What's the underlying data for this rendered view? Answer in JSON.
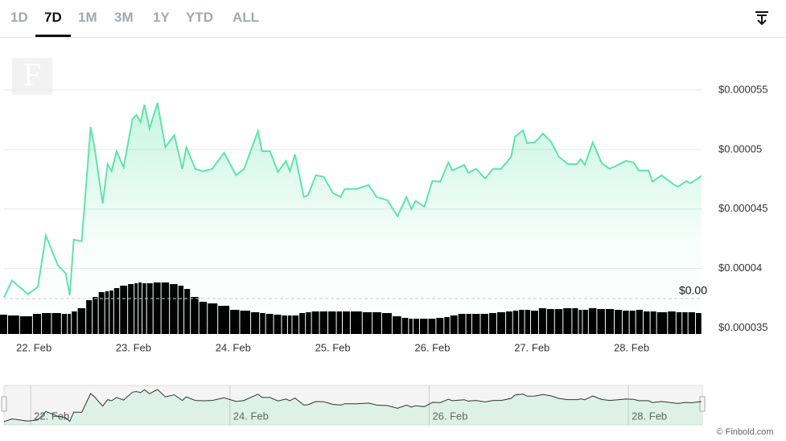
{
  "tabs": [
    "1D",
    "7D",
    "1M",
    "3M",
    "1Y",
    "YTD",
    "ALL"
  ],
  "active_tab": 1,
  "logo": "F",
  "credit": "© Finbold.com",
  "chart_data": {
    "type": "line",
    "x": [
      21.7,
      21.78,
      21.94,
      22.04,
      22.12,
      22.24,
      22.32,
      22.36,
      22.4,
      22.48,
      22.57,
      22.61,
      22.69,
      22.74,
      22.78,
      22.83,
      22.9,
      22.99,
      23.03,
      23.07,
      23.11,
      23.16,
      23.24,
      23.32,
      23.41,
      23.49,
      23.53,
      23.62,
      23.7,
      23.79,
      23.91,
      24.03,
      24.11,
      24.25,
      24.29,
      24.37,
      24.45,
      24.53,
      24.57,
      24.62,
      24.71,
      24.75,
      24.83,
      24.91,
      25.0,
      25.08,
      25.12,
      25.24,
      25.36,
      25.44,
      25.55,
      25.65,
      25.74,
      25.79,
      25.83,
      25.92,
      26.0,
      26.08,
      26.16,
      26.2,
      26.32,
      26.36,
      26.44,
      26.53,
      26.61,
      26.69,
      26.79,
      26.83,
      26.91,
      26.95,
      27.03,
      27.11,
      27.19,
      27.27,
      27.36,
      27.45,
      27.49,
      27.53,
      27.61,
      27.7,
      27.78,
      27.88,
      27.94,
      28.02,
      28.07,
      28.17,
      28.21,
      28.3,
      28.43,
      28.47,
      28.55,
      28.59,
      28.7
    ],
    "series": [
      {
        "color": "#5fe3ad",
        "values": [
          3.757e-05,
          3.899e-05,
          3.784e-05,
          3.845e-05,
          4.277e-05,
          4.027e-05,
          3.959e-05,
          3.777e-05,
          4.243e-05,
          4.23e-05,
          5.189e-05,
          5.007e-05,
          4.547e-05,
          4.878e-05,
          4.818e-05,
          4.986e-05,
          4.851e-05,
          5.257e-05,
          5.291e-05,
          5.23e-05,
          5.378e-05,
          5.176e-05,
          5.392e-05,
          5.02e-05,
          5.122e-05,
          4.838e-05,
          5.02e-05,
          4.838e-05,
          4.818e-05,
          4.838e-05,
          4.973e-05,
          4.784e-05,
          4.838e-05,
          5.155e-05,
          4.986e-05,
          4.986e-05,
          4.811e-05,
          4.905e-05,
          4.818e-05,
          4.959e-05,
          4.601e-05,
          4.615e-05,
          4.784e-05,
          4.77e-05,
          4.635e-05,
          4.601e-05,
          4.669e-05,
          4.669e-05,
          4.703e-05,
          4.601e-05,
          4.574e-05,
          4.439e-05,
          4.601e-05,
          4.5e-05,
          4.568e-05,
          4.52e-05,
          4.736e-05,
          4.73e-05,
          4.892e-05,
          4.824e-05,
          4.872e-05,
          4.804e-05,
          4.838e-05,
          4.757e-05,
          4.838e-05,
          4.838e-05,
          4.939e-05,
          5.108e-05,
          5.162e-05,
          5.054e-05,
          5.061e-05,
          5.135e-05,
          5.068e-05,
          4.939e-05,
          4.878e-05,
          4.878e-05,
          4.919e-05,
          4.872e-05,
          5.061e-05,
          4.885e-05,
          4.838e-05,
          4.878e-05,
          4.905e-05,
          4.892e-05,
          4.824e-05,
          4.824e-05,
          4.73e-05,
          4.784e-05,
          4.703e-05,
          4.689e-05,
          4.736e-05,
          4.716e-05,
          4.777e-05
        ]
      },
      {
        "color": "#000000",
        "axis": "y2",
        "values": [
          24,
          23,
          22,
          25,
          26,
          26,
          25,
          25,
          28,
          32,
          42,
          46,
          52,
          53,
          54,
          57,
          60,
          62,
          63,
          64,
          63,
          63,
          64,
          64,
          62,
          60,
          56,
          46,
          40,
          38,
          35,
          30,
          29,
          27,
          26,
          25,
          24,
          23,
          23,
          23,
          26,
          27,
          28,
          28,
          28,
          28,
          28,
          28,
          27,
          27,
          26,
          22,
          20,
          19,
          19,
          19,
          19,
          20,
          21,
          23,
          25,
          25,
          25,
          25,
          26,
          27,
          28,
          29,
          30,
          30,
          29,
          32,
          31,
          31,
          32,
          32,
          30,
          30,
          32,
          31,
          31,
          30,
          29,
          29,
          30,
          28,
          28,
          27,
          28,
          27,
          27,
          27,
          26
        ]
      }
    ],
    "xlim": [
      21.7,
      28.71
    ],
    "xticks": [
      {
        "value": 22,
        "label": "22. Feb"
      },
      {
        "value": 23,
        "label": "23. Feb"
      },
      {
        "value": 24,
        "label": "24. Feb"
      },
      {
        "value": 25,
        "label": "25. Feb"
      },
      {
        "value": 26,
        "label": "26. Feb"
      },
      {
        "value": 27,
        "label": "27. Feb"
      },
      {
        "value": 28,
        "label": "28. Feb"
      }
    ],
    "ylim": [
      3.45e-05,
      6e-05
    ],
    "yticks": [
      {
        "value": 3.5e-05,
        "label": "$0.000035"
      },
      {
        "value": 4e-05,
        "label": "$0.00004"
      },
      {
        "value": 4.5e-05,
        "label": "$0.000045"
      },
      {
        "value": 5e-05,
        "label": "$0.00005"
      },
      {
        "value": 5.5e-05,
        "label": "$0.000055"
      }
    ],
    "y2lim": [
      0,
      70
    ],
    "y2ticks": [
      {
        "value": 44,
        "label": "$0.00"
      }
    ],
    "grid": true
  }
}
